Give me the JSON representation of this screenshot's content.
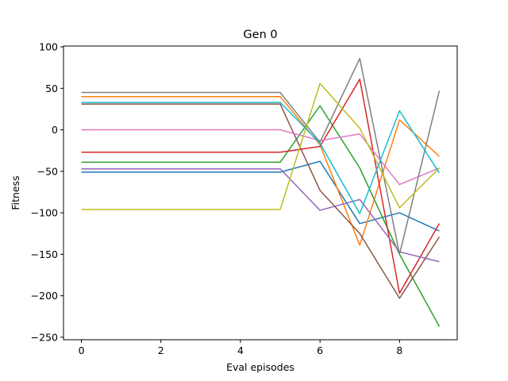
{
  "chart_data": {
    "type": "line",
    "title": "Gen 0",
    "xlabel": "Eval episodes",
    "ylabel": "Fitness",
    "xlim": [
      -0.45,
      9.45
    ],
    "ylim": [
      -253,
      101
    ],
    "x_ticks": [
      0,
      2,
      4,
      6,
      8
    ],
    "x_tick_labels": [
      "0",
      "2",
      "4",
      "6",
      "8"
    ],
    "y_ticks": [
      100,
      50,
      0,
      -50,
      -100,
      -150,
      -200,
      -250
    ],
    "y_tick_labels": [
      "100",
      "50",
      "0",
      "−50",
      "−100",
      "−150",
      "−200",
      "−250"
    ],
    "grid": false,
    "legend": "none",
    "x": [
      0,
      1,
      2,
      3,
      4,
      5,
      6,
      7,
      8,
      9
    ],
    "series": [
      {
        "color": "#1f77b4",
        "values": [
          -51,
          -51,
          -51,
          -51,
          -51,
          -51,
          -38,
          -113,
          -100,
          -122
        ]
      },
      {
        "color": "#ff7f0e",
        "values": [
          40,
          40,
          40,
          40,
          40,
          40,
          -18,
          -139,
          12,
          -32
        ]
      },
      {
        "color": "#2ca02c",
        "values": [
          -39,
          -39,
          -39,
          -39,
          -39,
          -39,
          29,
          -46,
          -150,
          -237
        ]
      },
      {
        "color": "#d62728",
        "values": [
          -27,
          -27,
          -27,
          -27,
          -27,
          -27,
          -20,
          61,
          -197,
          -113
        ]
      },
      {
        "color": "#9467bd",
        "values": [
          -47,
          -47,
          -47,
          -47,
          -47,
          -47,
          -97,
          -84,
          -147,
          -159
        ]
      },
      {
        "color": "#8c564b",
        "values": [
          31,
          31,
          31,
          31,
          31,
          31,
          -73,
          -125,
          -203,
          -129
        ]
      },
      {
        "color": "#e377c2",
        "values": [
          0,
          0,
          0,
          0,
          0,
          0,
          -13,
          -5,
          -66,
          -46
        ]
      },
      {
        "color": "#7f7f7f",
        "values": [
          45,
          45,
          45,
          45,
          45,
          45,
          -15,
          86,
          -150,
          47
        ]
      },
      {
        "color": "#bcbd22",
        "values": [
          -96,
          -96,
          -96,
          -96,
          -96,
          -96,
          56,
          2,
          -94,
          -46
        ]
      },
      {
        "color": "#17becf",
        "values": [
          33,
          33,
          33,
          33,
          33,
          33,
          -16,
          -101,
          23,
          -52
        ]
      }
    ]
  }
}
